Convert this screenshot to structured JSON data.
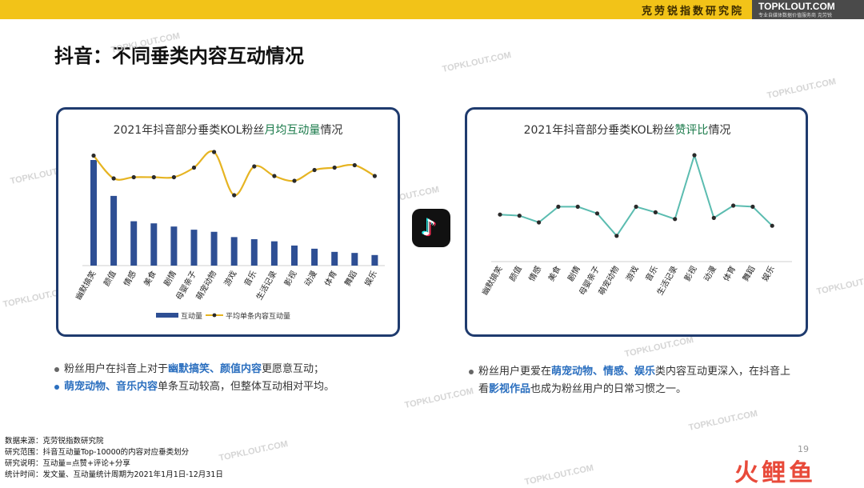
{
  "header": {
    "org": "克劳锐指数研究院",
    "brand": "TOPKLOUT.COM",
    "brand_sub": "专业自媒体数据价值服务商 克劳锐"
  },
  "page_title": "抖音：不同垂类内容互动情况",
  "watermark": "TOPKLOUT.COM",
  "left_chart_title": {
    "pre": "2021年抖音部分垂类KOL粉丝",
    "hl": "月均互动量",
    "post": "情况"
  },
  "right_chart_title": {
    "pre": "2021年抖音部分垂类KOL粉丝",
    "hl": "赞评比",
    "post": "情况"
  },
  "chart_data": [
    {
      "type": "bar",
      "categories": [
        "幽默搞笑",
        "颜值",
        "情感",
        "美食",
        "剧情",
        "母婴亲子",
        "萌宠动物",
        "游戏",
        "音乐",
        "生活记录",
        "影视",
        "动漫",
        "体育",
        "舞蹈",
        "娱乐"
      ],
      "series": [
        {
          "name": "互动量",
          "type": "bar",
          "color": "#2e4f94",
          "values": [
            1.0,
            0.66,
            0.42,
            0.4,
            0.37,
            0.34,
            0.32,
            0.27,
            0.25,
            0.23,
            0.19,
            0.16,
            0.13,
            0.12,
            0.1
          ]
        },
        {
          "name": "平均单条内容互动量",
          "type": "line",
          "color": "#e6b422",
          "values": [
            0.95,
            0.76,
            0.77,
            0.77,
            0.77,
            0.85,
            0.98,
            0.62,
            0.86,
            0.78,
            0.74,
            0.83,
            0.85,
            0.87,
            0.78
          ]
        }
      ],
      "ylim": [
        0,
        1
      ]
    },
    {
      "type": "line",
      "categories": [
        "幽默搞笑",
        "颜值",
        "情感",
        "美食",
        "剧情",
        "母婴亲子",
        "萌宠动物",
        "游戏",
        "音乐",
        "生活记录",
        "影视",
        "动漫",
        "体育",
        "舞蹈",
        "娱乐"
      ],
      "series": [
        {
          "color": "#5bbcb0",
          "values": [
            0.42,
            0.41,
            0.35,
            0.49,
            0.49,
            0.43,
            0.23,
            0.49,
            0.44,
            0.38,
            0.95,
            0.39,
            0.5,
            0.49,
            0.32
          ]
        }
      ],
      "ylim": [
        0,
        1
      ]
    }
  ],
  "notes_left": [
    {
      "dot_color": "#666666",
      "parts": [
        {
          "t": "粉丝用户在抖音上对于",
          "hl": false
        },
        {
          "t": "幽默搞笑、颜值内容",
          "hl": true
        },
        {
          "t": "更愿意互动；",
          "hl": false
        }
      ]
    },
    {
      "dot_color": "#2b6fbf",
      "parts": [
        {
          "t": "萌宠动物、音乐内容",
          "hl": true
        },
        {
          "t": "单条互动较高，但整体互动相对平均。",
          "hl": false
        }
      ]
    }
  ],
  "notes_right": [
    {
      "dot_color": "#666666",
      "parts": [
        {
          "t": "粉丝用户更爱在",
          "hl": false
        },
        {
          "t": "萌宠动物、情感、娱乐",
          "hl": true
        },
        {
          "t": "类内容互动更深入，在抖音上",
          "hl": false
        }
      ]
    },
    {
      "dot_color": "",
      "parts": [
        {
          "t": "看",
          "hl": false
        },
        {
          "t": "影视作品",
          "hl": true
        },
        {
          "t": "也成为粉丝用户的日常习惯之一。",
          "hl": false
        }
      ]
    }
  ],
  "footer": [
    "数据来源：克劳锐指数研究院",
    "研究范围：抖音互动量Top-10000的内容对应垂类划分",
    "研究说明：互动量=点赞+评论+分享",
    "统计时间：发文量、互动量统计周期为2021年1月1日-12月31日"
  ],
  "page_number": "19",
  "bottom_logo": "火鲤鱼"
}
